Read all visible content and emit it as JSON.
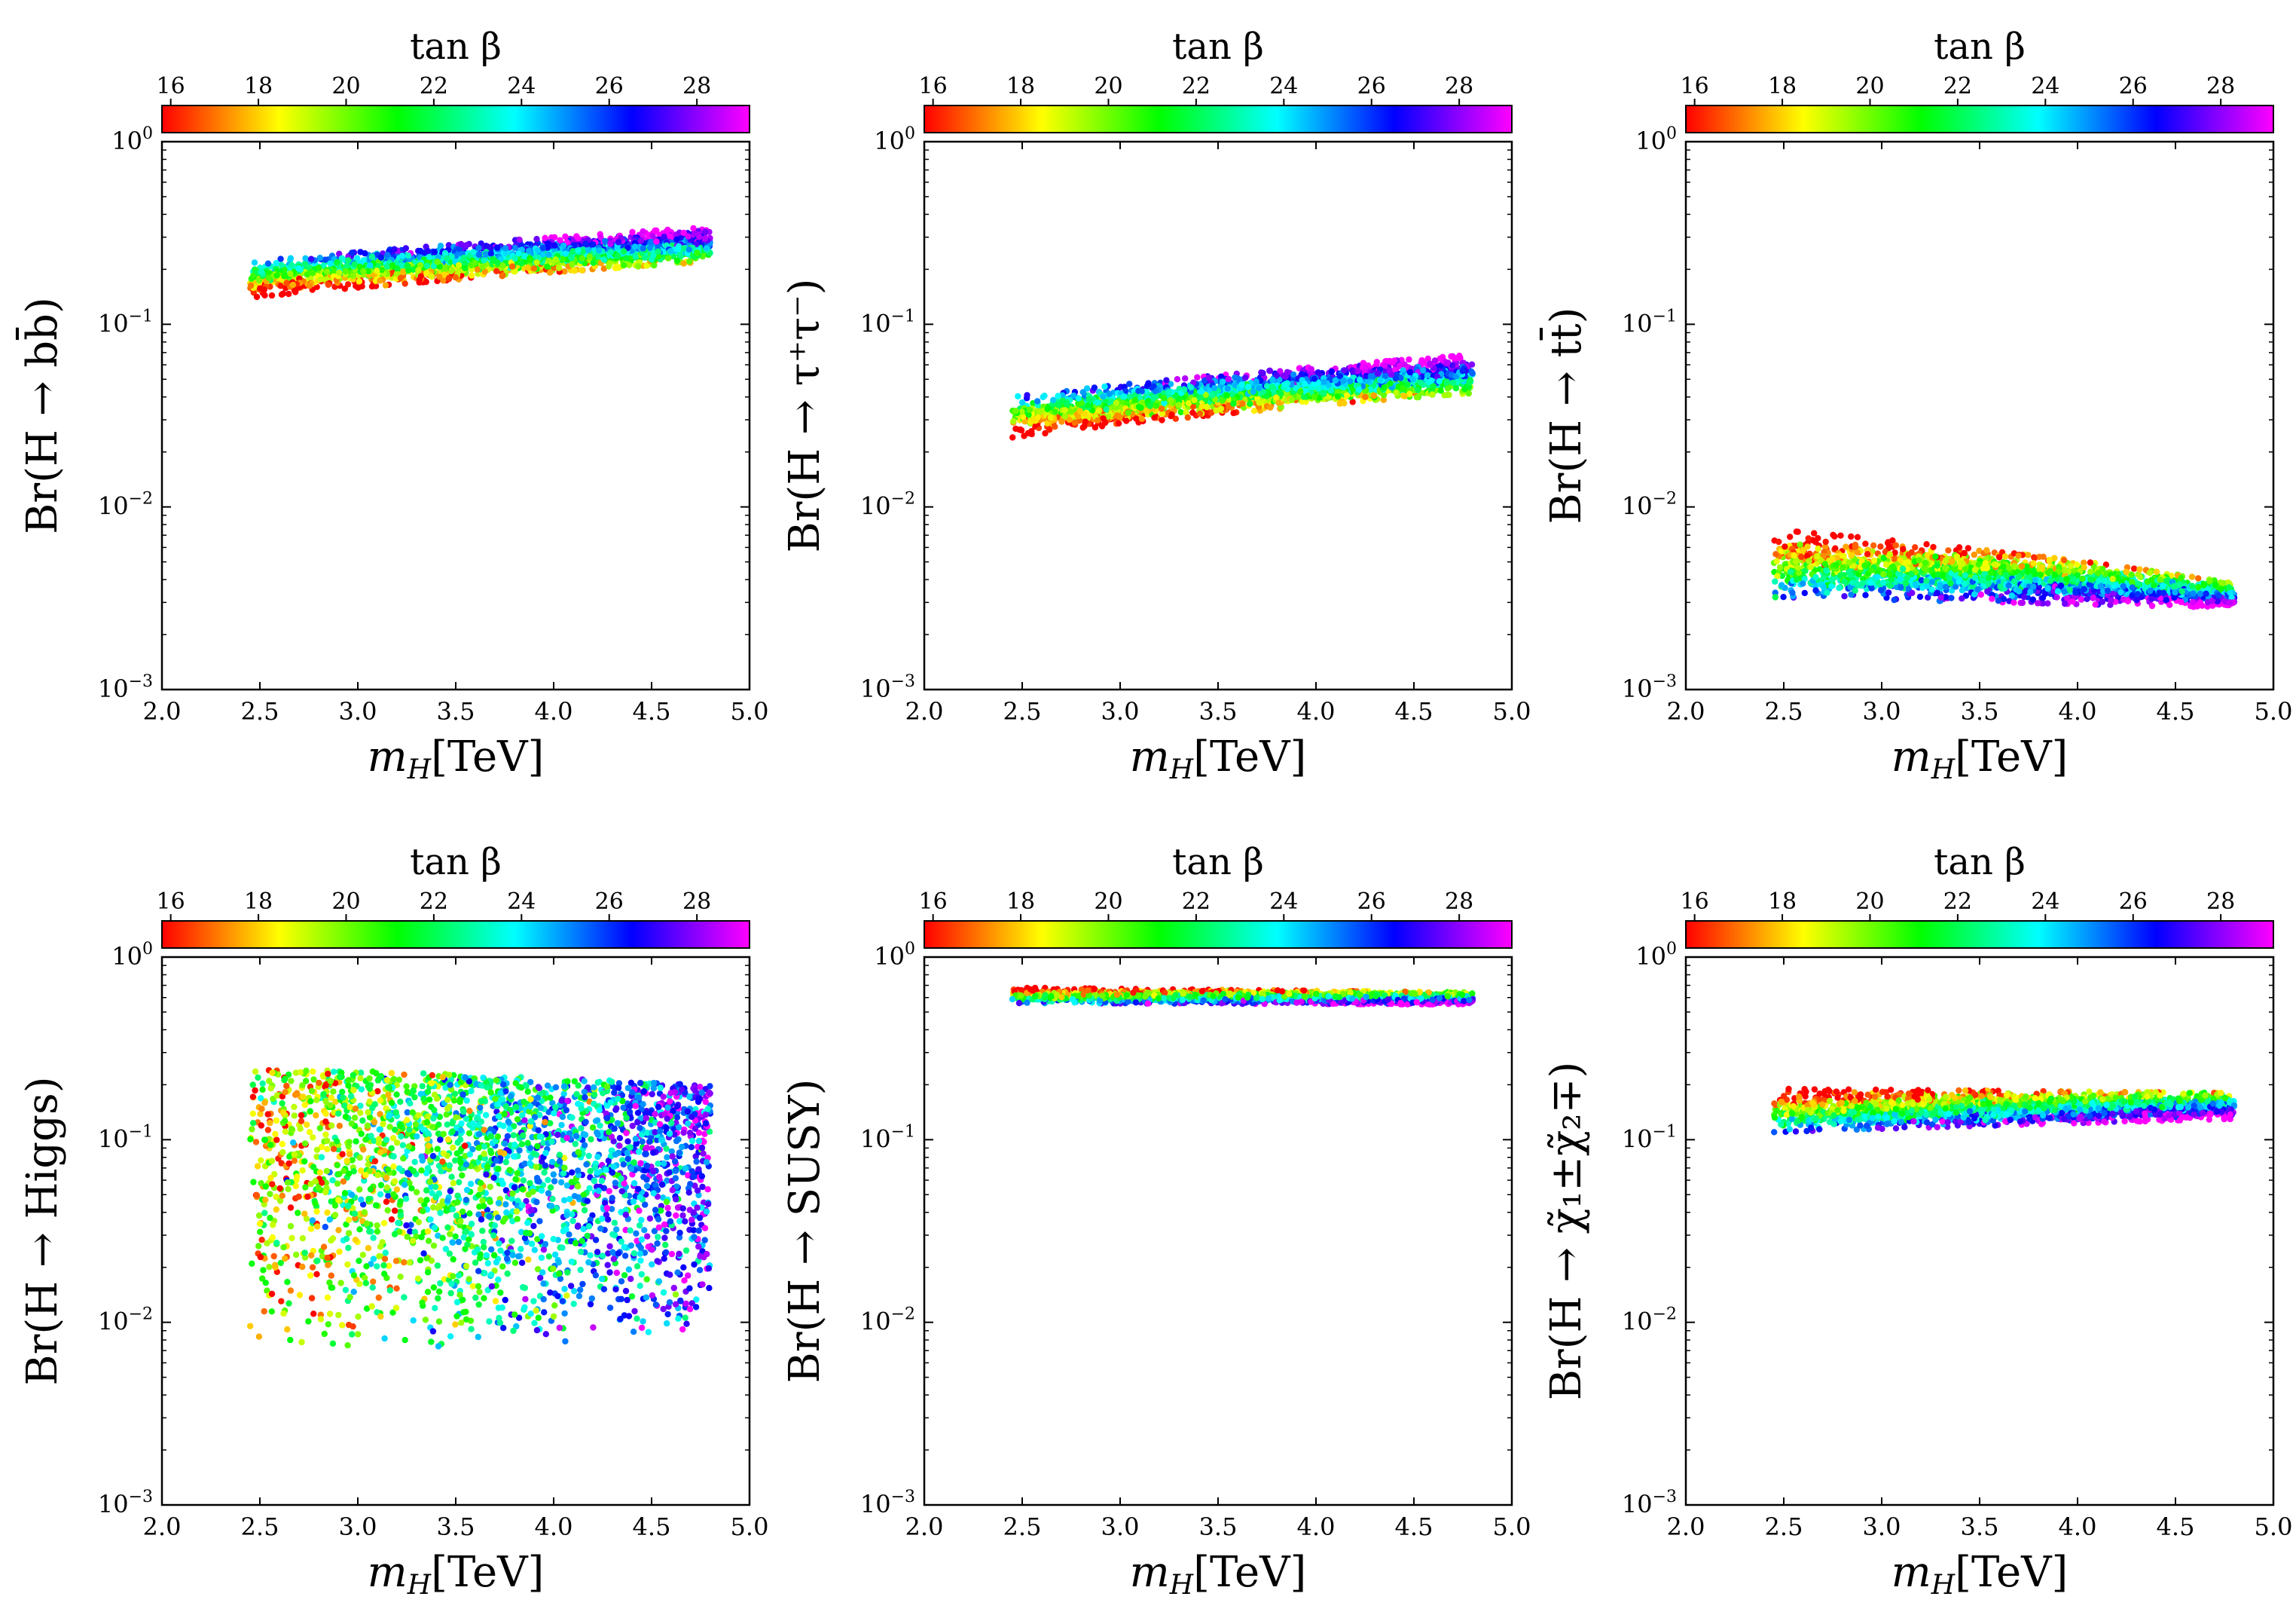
{
  "colorbar": {
    "label": "tan β",
    "ticks": [
      16,
      18,
      20,
      22,
      24,
      26,
      28
    ],
    "range": [
      15.8,
      29.2
    ],
    "colormap": [
      "#ff0000",
      "#ff8000",
      "#ffff00",
      "#80ff00",
      "#00ff00",
      "#00ff80",
      "#00ffff",
      "#0080ff",
      "#0000ff",
      "#8000ff",
      "#ff00ff"
    ]
  },
  "axes_common": {
    "xlabel_sym": "m",
    "xlabel_sub": "H",
    "xlabel_unit": "[TeV]",
    "xticks": [
      "2.0",
      "2.5",
      "3.0",
      "3.5",
      "4.0",
      "4.5",
      "5.0"
    ],
    "yticks": [
      {
        "base": "10",
        "exp": "0"
      },
      {
        "base": "10",
        "exp": "−1"
      },
      {
        "base": "10",
        "exp": "−2"
      },
      {
        "base": "10",
        "exp": "−3"
      }
    ]
  },
  "chart_data": [
    {
      "type": "scatter",
      "id": "bb",
      "ylabel": "Br(H → bb̄)",
      "xlabel": "m_H[TeV]",
      "xlim": [
        2.0,
        5.0
      ],
      "ylim": [
        0.001,
        1
      ],
      "yscale": "log",
      "color_by": "tan β",
      "band": {
        "x": [
          2.45,
          4.8
        ],
        "y_low": [
          0.14,
          0.22
        ],
        "y_high": [
          0.22,
          0.34
        ],
        "tanb_low_y": 16,
        "tanb_high_y": 28
      }
    },
    {
      "type": "scatter",
      "id": "tautau",
      "ylabel": "Br(H → τ⁺τ⁻)",
      "xlabel": "m_H[TeV]",
      "xlim": [
        2.0,
        5.0
      ],
      "ylim": [
        0.001,
        1
      ],
      "yscale": "log",
      "color_by": "tan β",
      "band": {
        "x": [
          2.45,
          4.8
        ],
        "y_low": [
          0.024,
          0.042
        ],
        "y_high": [
          0.04,
          0.068
        ],
        "tanb_low_y": 16,
        "tanb_high_y": 28
      }
    },
    {
      "type": "scatter",
      "id": "tt",
      "ylabel": "Br(H → tt̄)",
      "xlabel": "m_H[TeV]",
      "xlim": [
        2.0,
        5.0
      ],
      "ylim": [
        0.001,
        1
      ],
      "yscale": "log",
      "color_by": "tan β",
      "band": {
        "x": [
          2.45,
          4.8
        ],
        "y_low": [
          0.0032,
          0.0028
        ],
        "y_high": [
          0.0075,
          0.0038
        ],
        "tanb_low_y": 28,
        "tanb_high_y": 16
      }
    },
    {
      "type": "scatter",
      "id": "higgs",
      "ylabel": "Br(H → Higgs)",
      "xlabel": "m_H[TeV]",
      "xlim": [
        2.0,
        5.0
      ],
      "ylim": [
        0.001,
        1
      ],
      "yscale": "log",
      "color_by": "tan β",
      "band": {
        "x": [
          2.45,
          4.8
        ],
        "y_low": [
          0.006,
          0.008
        ],
        "y_high": [
          0.25,
          0.2
        ],
        "tanb_low_y": 22,
        "tanb_high_y": 20,
        "spread": "wide"
      }
    },
    {
      "type": "scatter",
      "id": "susy",
      "ylabel": "Br(H → SUSY)",
      "xlabel": "m_H[TeV]",
      "xlim": [
        2.0,
        5.0
      ],
      "ylim": [
        0.001,
        1
      ],
      "yscale": "log",
      "color_by": "tan β",
      "band": {
        "x": [
          2.45,
          4.8
        ],
        "y_low": [
          0.56,
          0.55
        ],
        "y_high": [
          0.68,
          0.64
        ],
        "tanb_low_y": 28,
        "tanb_high_y": 16
      }
    },
    {
      "type": "scatter",
      "id": "chargino",
      "ylabel": "Br(H → χ̃₁±χ̃₂∓)",
      "xlabel": "m_H[TeV]",
      "xlim": [
        2.0,
        5.0
      ],
      "ylim": [
        0.001,
        1
      ],
      "yscale": "log",
      "color_by": "tan β",
      "band": {
        "x": [
          2.45,
          4.8
        ],
        "y_low": [
          0.11,
          0.13
        ],
        "y_high": [
          0.19,
          0.18
        ],
        "tanb_low_y": 28,
        "tanb_high_y": 16
      }
    }
  ]
}
